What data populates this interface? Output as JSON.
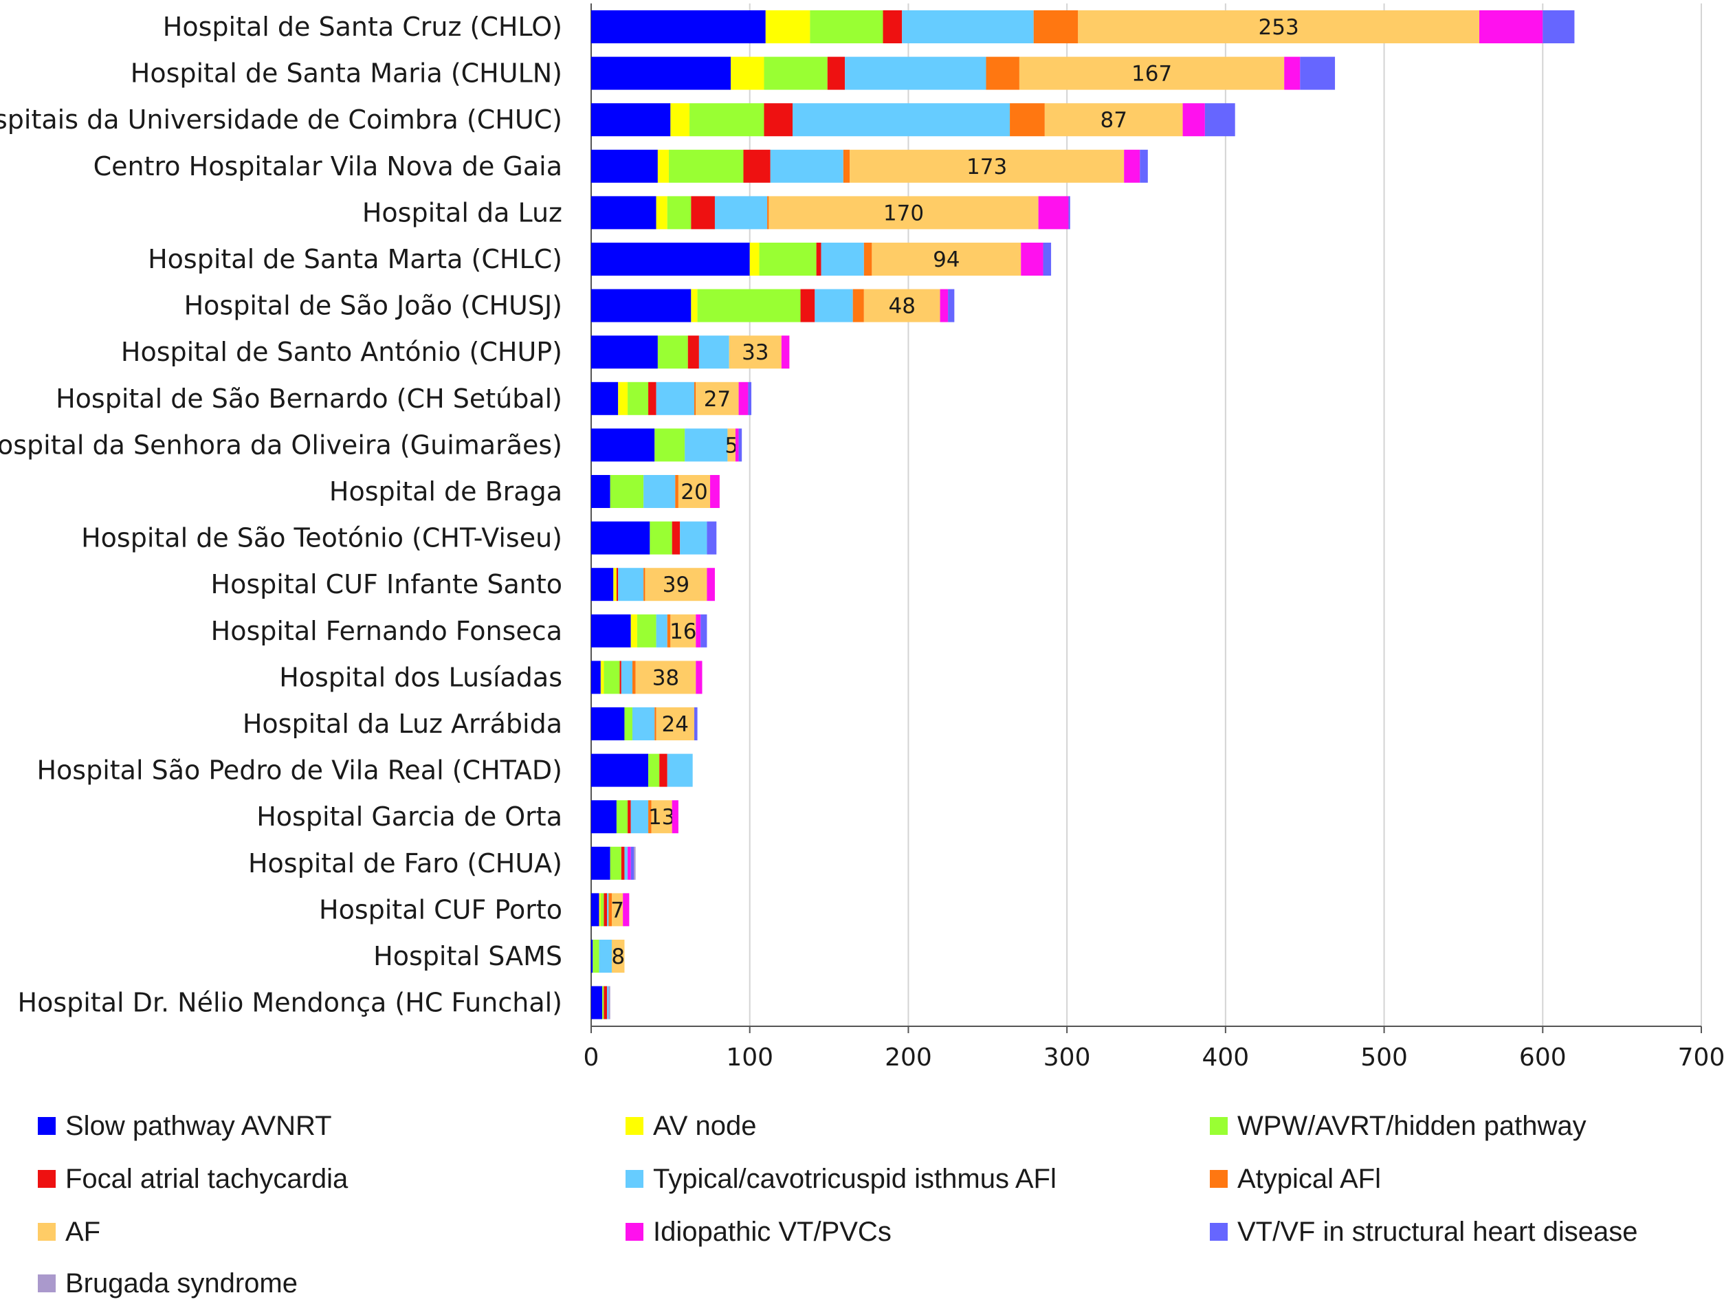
{
  "chart_data": {
    "type": "bar",
    "orientation": "horizontal",
    "stacked": true,
    "xlim": [
      0,
      700
    ],
    "x_ticks": [
      "0",
      "100",
      "200",
      "300",
      "400",
      "500",
      "600",
      "700"
    ],
    "grid": "vertical",
    "legend_position": "bottom",
    "categories": [
      "Hospital de Santa Cruz (CHLO)",
      "Hospital de Santa Maria (CHULN)",
      "Hospitais da Universidade de Coimbra (CHUC)",
      "Centro Hospitalar Vila Nova de Gaia",
      "Hospital da Luz",
      "Hospital de Santa Marta (CHLC)",
      "Hospital de São João (CHUSJ)",
      "Hospital de Santo António (CHUP)",
      "Hospital de São Bernardo (CH Setúbal)",
      "Hospital da Senhora da Oliveira (Guimarães)",
      "Hospital de Braga",
      "Hospital de São Teotónio (CHT-Viseu)",
      "Hospital CUF Infante Santo",
      "Hospital Fernando Fonseca",
      "Hospital dos Lusíadas",
      "Hospital da Luz Arrábida",
      "Hospital São Pedro de Vila Real (CHTAD)",
      "Hospital Garcia de Orta",
      "Hospital de Faro (CHUA)",
      "Hospital CUF Porto",
      "Hospital SAMS",
      "Hospital Dr. Nélio Mendonça (HC Funchal)"
    ],
    "series": [
      {
        "name": "Slow pathway AVNRT",
        "color": "#0000ff",
        "values": [
          110,
          88,
          50,
          42,
          41,
          100,
          63,
          42,
          17,
          40,
          12,
          37,
          14,
          25,
          6,
          21,
          36,
          16,
          12,
          5,
          1,
          7
        ]
      },
      {
        "name": "AV node",
        "color": "#ffff00",
        "values": [
          28,
          21,
          12,
          7,
          7,
          6,
          4,
          0,
          6,
          0,
          0,
          0,
          2,
          4,
          2,
          0,
          0,
          0,
          0,
          1,
          0,
          0
        ]
      },
      {
        "name": "WPW/AVRT/hidden pathway",
        "color": "#99ff33",
        "values": [
          46,
          40,
          47,
          47,
          15,
          36,
          65,
          19,
          13,
          19,
          21,
          14,
          0,
          12,
          10,
          5,
          7,
          7,
          7,
          2,
          4,
          1
        ]
      },
      {
        "name": "Focal atrial tachycardia",
        "color": "#ee1111",
        "values": [
          12,
          11,
          18,
          17,
          15,
          3,
          9,
          7,
          5,
          0,
          0,
          5,
          1,
          0,
          1,
          0,
          5,
          2,
          2,
          2,
          0,
          2
        ]
      },
      {
        "name": "Typical/cavotricuspid isthmus AFl",
        "color": "#66ccff",
        "values": [
          83,
          89,
          137,
          46,
          33,
          27,
          24,
          19,
          24,
          27,
          20,
          17,
          16,
          7,
          7,
          14,
          16,
          11,
          2,
          1,
          8,
          1
        ]
      },
      {
        "name": "Atypical AFl",
        "color": "#ff7711",
        "values": [
          28,
          21,
          22,
          4,
          1,
          5,
          7,
          0,
          1,
          0,
          2,
          0,
          1,
          2,
          2,
          1,
          0,
          2,
          0,
          2,
          0,
          0
        ]
      },
      {
        "name": "AF",
        "color": "#ffcc66",
        "values": [
          253,
          167,
          87,
          173,
          170,
          94,
          48,
          33,
          27,
          5,
          20,
          0,
          39,
          16,
          38,
          24,
          0,
          13,
          0,
          7,
          8,
          0
        ]
      },
      {
        "name": "Idiopathic VT/PVCs",
        "color": "#ff11ee",
        "values": [
          40,
          10,
          14,
          10,
          19,
          14,
          5,
          5,
          6,
          2,
          6,
          0,
          5,
          3,
          4,
          0,
          0,
          4,
          2,
          4,
          0,
          0
        ]
      },
      {
        "name": "VT/VF in structural heart disease",
        "color": "#6666ff",
        "values": [
          20,
          22,
          19,
          5,
          1,
          5,
          4,
          0,
          2,
          2,
          0,
          6,
          0,
          4,
          0,
          2,
          0,
          0,
          2,
          0,
          0,
          0
        ]
      },
      {
        "name": "Brugada syndrome",
        "color": "#aa99cc",
        "values": [
          0,
          0,
          0,
          0,
          0,
          0,
          0,
          0,
          0,
          0,
          0,
          0,
          0,
          0,
          0,
          0,
          0,
          0,
          1,
          0,
          0,
          1
        ]
      }
    ],
    "af_labels": [
      "253",
      "167",
      "87",
      "173",
      "170",
      "94",
      "48",
      "33",
      "27",
      "5",
      "20",
      "",
      "39",
      "16",
      "38",
      "24",
      "",
      "13",
      "",
      "7",
      "8",
      ""
    ]
  }
}
